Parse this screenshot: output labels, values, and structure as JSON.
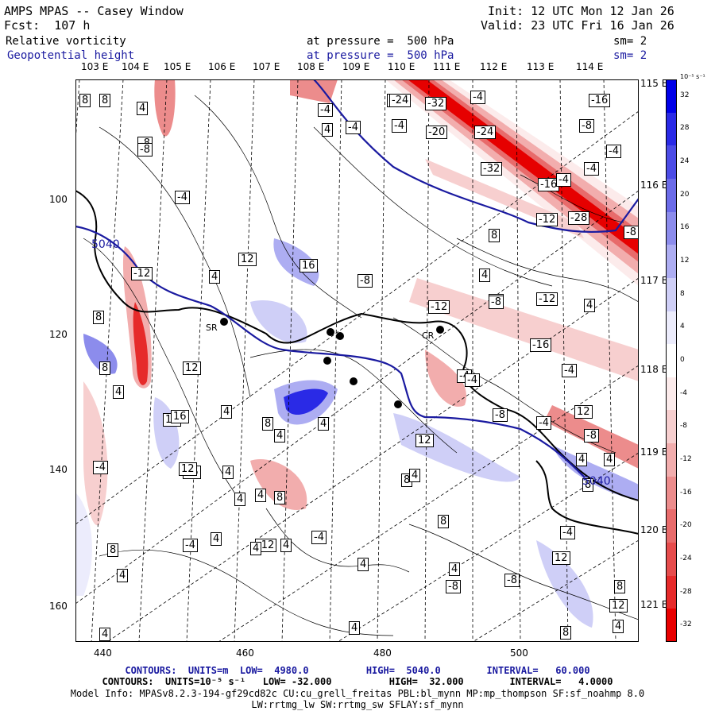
{
  "header": {
    "title": "AMPS MPAS -- Casey Window",
    "forecast": "Fcst:  107 h",
    "init": "Init: 12 UTC Mon 12 Jan 26",
    "valid": "Valid: 23 UTC Fri 16 Jan 26",
    "field1": "Relative vorticity",
    "field1_level": "at pressure =  500 hPa",
    "field1_sm": "sm= 2",
    "field2": "Geopotential height",
    "field2_level": "at pressure =  500 hPa",
    "field2_sm": "sm= 2"
  },
  "colorbar": {
    "unit": "10⁻⁵ s⁻¹",
    "labels": [
      "32",
      "28",
      "24",
      "20",
      "16",
      "12",
      "8",
      "4",
      "0",
      "-4",
      "-8",
      "-12",
      "-16",
      "-20",
      "-24",
      "-28",
      "-32"
    ],
    "colors": [
      "#0000e8",
      "#2a2ae6",
      "#4c4ce6",
      "#6b6be8",
      "#8c8cec",
      "#adadf2",
      "#cfcff7",
      "#ececfc",
      "#ffffff",
      "#fcebeb",
      "#f7cfcf",
      "#f2adad",
      "#ec8c8c",
      "#e86b6b",
      "#e64c4c",
      "#e62a2a",
      "#e80000"
    ]
  },
  "axes": {
    "bottom_ticks": [
      "440",
      "460",
      "480",
      "500"
    ],
    "left_ticks": [
      "100",
      "120",
      "140",
      "160"
    ],
    "top_lon_labels": [
      "103 E",
      "104 E",
      "105 E",
      "106 E",
      "107 E",
      "108 E",
      "109 E",
      "110 E",
      "111 E",
      "112 E",
      "113 E",
      "114 E"
    ],
    "right_lon_labels": [
      "115 E",
      "116 E",
      "117 E",
      "118 E",
      "119 E",
      "120 E",
      "121 E"
    ]
  },
  "map": {
    "stations": [
      "SR",
      "CR"
    ],
    "height_labels": [
      "5040",
      "5040"
    ],
    "contour_labels": [
      "8",
      "8",
      "4",
      "-4",
      "-8",
      "-24",
      "-32",
      "-4",
      "-16",
      "-8",
      "-4",
      "-4",
      "-20",
      "-24",
      "-8",
      "4",
      "-8",
      "-4",
      "-32",
      "-4",
      "-16",
      "-4",
      "-12",
      "-28",
      "-8",
      "-4",
      "8",
      "4",
      "12",
      "16",
      "-8",
      "4",
      "-8",
      "-12",
      "-8",
      "-12",
      "4",
      "-12",
      "8",
      "-16",
      "-4",
      "8",
      "12",
      "12",
      "-4",
      "-4",
      "4",
      "4",
      "8",
      "-8",
      "4",
      "4",
      "4",
      "4",
      "12",
      "16",
      "-4",
      "-8",
      "16",
      "4",
      "8",
      "-4",
      "4",
      "12",
      "-4",
      "8",
      "-12",
      "8",
      "12",
      "4",
      "-8",
      "-4",
      "4",
      "-4",
      "8",
      "4",
      "8",
      "4",
      "4",
      "4",
      "4",
      "-8",
      "8",
      "4",
      "8",
      "4",
      "12",
      "12",
      "4",
      "4"
    ]
  },
  "footer": {
    "line1": "CONTOURS:  UNITS=m  LOW=  4980.0          HIGH=  5040.0        INTERVAL=   60.000",
    "line2": "CONTOURS:  UNITS=10⁻⁵ s⁻¹   LOW= -32.000          HIGH=  32.000        INTERVAL=   4.0000",
    "line3": "Model Info: MPASv8.2.3-194-gf29cd82c CU:cu_grell_freitas PBL:bl_mynn MP:mp_thompson SF:sf_noahmp 8.0",
    "line4": "LW:rrtmg_lw SW:rrtmg_sw SFLAY:sf_mynn"
  }
}
